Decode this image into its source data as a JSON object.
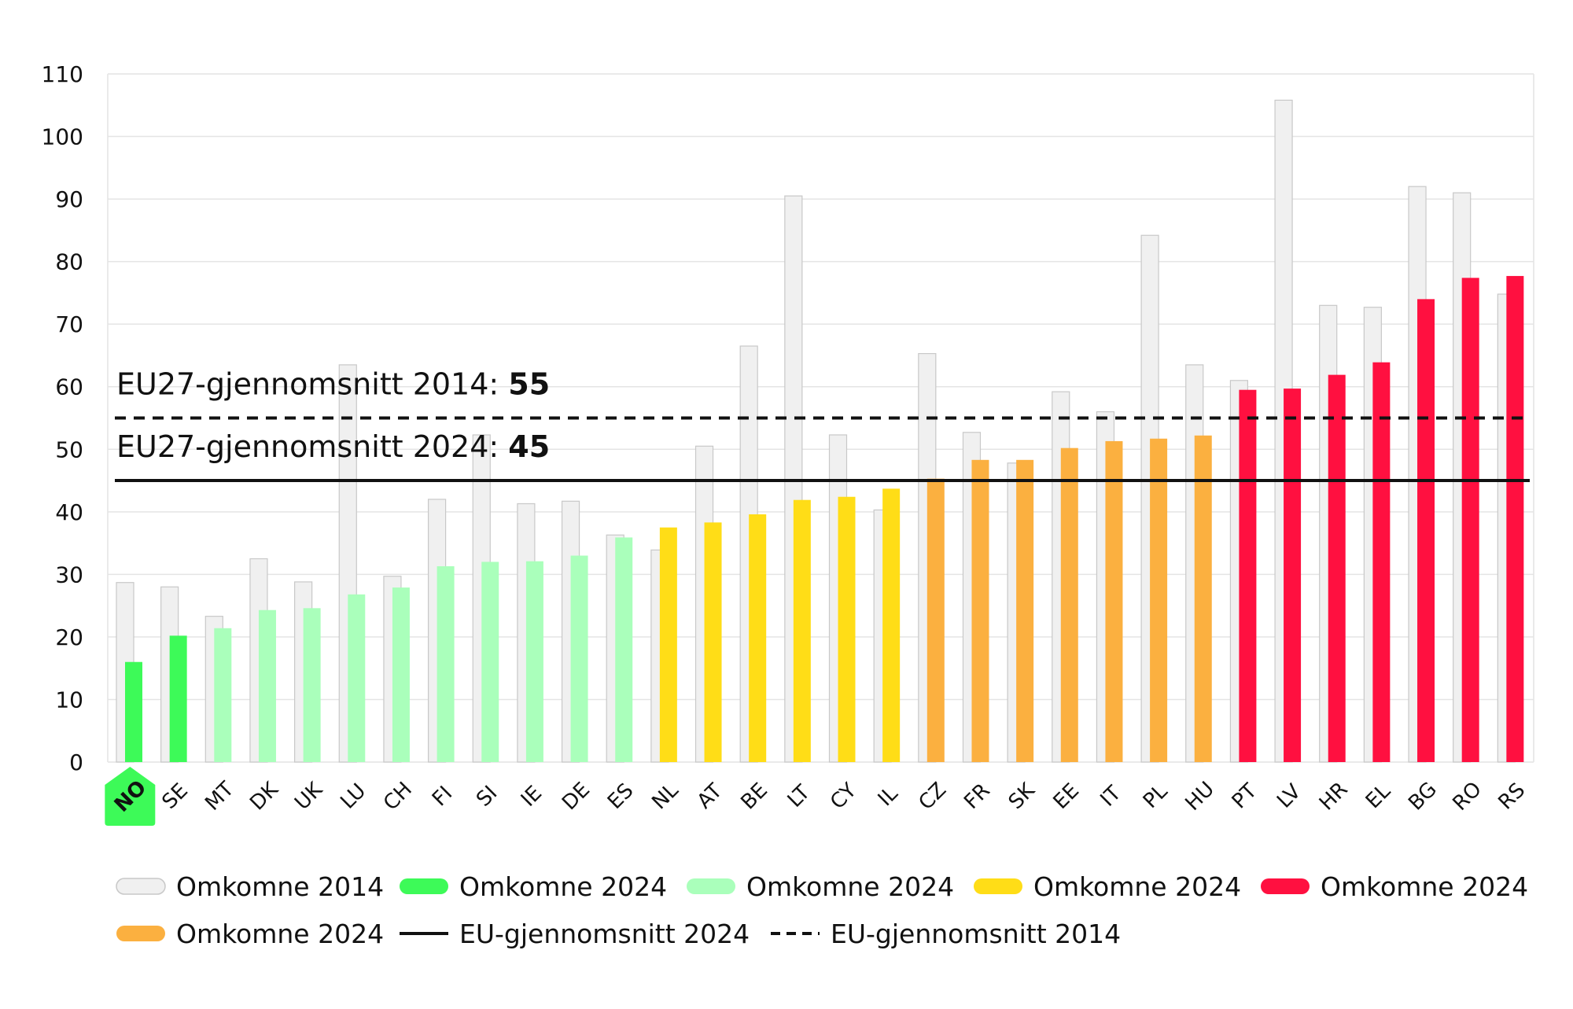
{
  "chart_data": {
    "type": "bar",
    "categories": [
      "NO",
      "SE",
      "MT",
      "DK",
      "UK",
      "LU",
      "CH",
      "FI",
      "SI",
      "IE",
      "DE",
      "ES",
      "NL",
      "AT",
      "BE",
      "LT",
      "CY",
      "IL",
      "CZ",
      "FR",
      "SK",
      "EE",
      "IT",
      "PL",
      "HU",
      "PT",
      "LV",
      "HR",
      "EL",
      "BG",
      "RO",
      "RS"
    ],
    "highlight_category": "NO",
    "series": [
      {
        "name": "Omkomne 2014",
        "color": "#f0f0f0",
        "values": [
          28.7,
          28,
          23.3,
          32.5,
          28.8,
          63.5,
          29.7,
          42,
          52.3,
          41.3,
          41.7,
          36.3,
          33.9,
          50.5,
          66.5,
          90.5,
          52.3,
          40.3,
          65.3,
          52.7,
          47.8,
          59.2,
          56,
          84.2,
          63.5,
          61,
          105.8,
          73,
          72.7,
          92,
          91,
          74.8
        ]
      },
      {
        "name": "Omkomne 2024",
        "values": [
          16,
          20.2,
          21.4,
          24.3,
          24.6,
          26.8,
          27.9,
          31.3,
          32,
          32.1,
          33,
          35.9,
          37.5,
          38.3,
          39.6,
          41.9,
          42.4,
          43.7,
          45.3,
          48.3,
          48.3,
          50.2,
          51.3,
          51.7,
          52.2,
          59.5,
          59.7,
          61.9,
          63.9,
          74,
          77.4,
          77.7
        ],
        "colors": [
          "#3dfa58",
          "#3dfa58",
          "#aaffbb",
          "#aaffbb",
          "#aaffbb",
          "#aaffbb",
          "#aaffbb",
          "#aaffbb",
          "#aaffbb",
          "#aaffbb",
          "#aaffbb",
          "#aaffbb",
          "#ffdd17",
          "#ffdd17",
          "#ffdd17",
          "#ffdd17",
          "#ffdd17",
          "#ffdd17",
          "#fbb040",
          "#fbb040",
          "#fbb040",
          "#fbb040",
          "#fbb040",
          "#fbb040",
          "#fbb040",
          "#ff1040",
          "#ff1040",
          "#ff1040",
          "#ff1040",
          "#ff1040",
          "#ff1040",
          "#ff1040"
        ]
      }
    ],
    "reference_lines": [
      {
        "label": "EU27-gjennomsnitt 2014: ",
        "value_text": "55",
        "value": 55,
        "style": "dashed"
      },
      {
        "label": "EU27-gjennomsnitt 2024: ",
        "value_text": "45",
        "value": 45,
        "style": "solid"
      }
    ],
    "y_ticks": [
      0,
      10,
      20,
      30,
      40,
      50,
      60,
      70,
      80,
      90,
      100,
      110
    ],
    "ylim": [
      0,
      110
    ],
    "grid": true,
    "legend_position": "bottom",
    "legend": [
      {
        "label": "Omkomne 2014",
        "kind": "swatch",
        "color": "#f0f0f0",
        "border": "#c8c8c8"
      },
      {
        "label": "Omkomne 2024",
        "kind": "swatch",
        "color": "#3dfa58"
      },
      {
        "label": "Omkomne 2024",
        "kind": "swatch",
        "color": "#aaffbb"
      },
      {
        "label": "Omkomne 2024",
        "kind": "swatch",
        "color": "#ffdd17"
      },
      {
        "label": "Omkomne 2024",
        "kind": "swatch",
        "color": "#ff1040"
      },
      {
        "label": "Omkomne 2024",
        "kind": "swatch",
        "color": "#fbb040"
      },
      {
        "label": "EU-gjennomsnitt 2024",
        "kind": "solid-line",
        "color": "#111111"
      },
      {
        "label": "EU-gjennomsnitt 2014",
        "kind": "dashed-line",
        "color": "#111111"
      }
    ]
  }
}
